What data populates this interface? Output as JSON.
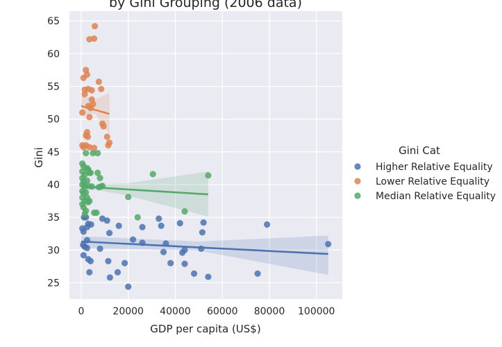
{
  "chart_data": {
    "type": "scatter",
    "title": "by Gini Grouping (2006 data)",
    "xlabel": "GDP per capita (US$)",
    "ylabel": "Gini",
    "xlim": [
      -5000,
      111000
    ],
    "ylim": [
      22.5,
      66.5
    ],
    "xticks": [
      0,
      20000,
      40000,
      60000,
      80000,
      100000
    ],
    "yticks": [
      25,
      30,
      35,
      40,
      45,
      50,
      55,
      60,
      65
    ],
    "xtick_labels": [
      "0",
      "20000",
      "40000",
      "60000",
      "80000",
      "100000"
    ],
    "ytick_labels": [
      "25",
      "30",
      "35",
      "40",
      "45",
      "50",
      "55",
      "60",
      "65"
    ],
    "grid": true,
    "legend": {
      "title": "Gini Cat",
      "placement": "right"
    },
    "series": [
      {
        "name": "Higher Relative Equality",
        "color": "#4c72b0",
        "points": [
          [
            500,
            33.3
          ],
          [
            1000,
            32.8
          ],
          [
            800,
            30.8
          ],
          [
            1200,
            35
          ],
          [
            2000,
            35
          ],
          [
            2500,
            33.5
          ],
          [
            3000,
            34
          ],
          [
            1500,
            30.5
          ],
          [
            2500,
            30.3
          ],
          [
            1000,
            29.2
          ],
          [
            2500,
            31.5
          ],
          [
            3000,
            28.6
          ],
          [
            4000,
            28.3
          ],
          [
            3500,
            26.6
          ],
          [
            4200,
            33.9
          ],
          [
            8000,
            30.2
          ],
          [
            9000,
            34.8
          ],
          [
            11000,
            34.5
          ],
          [
            12000,
            32.6
          ],
          [
            11500,
            28.3
          ],
          [
            12200,
            25.8
          ],
          [
            16000,
            33.7
          ],
          [
            15500,
            26.6
          ],
          [
            18500,
            28
          ],
          [
            20000,
            24.4
          ],
          [
            22000,
            31.6
          ],
          [
            26000,
            33.5
          ],
          [
            26000,
            31.1
          ],
          [
            33000,
            34.8
          ],
          [
            34000,
            33.7
          ],
          [
            35000,
            29.7
          ],
          [
            36000,
            31
          ],
          [
            38000,
            28
          ],
          [
            42000,
            34.1
          ],
          [
            43000,
            29.6
          ],
          [
            44000,
            30
          ],
          [
            44000,
            27.9
          ],
          [
            48000,
            26.4
          ],
          [
            51000,
            30.2
          ],
          [
            51500,
            32.7
          ],
          [
            52000,
            34.2
          ],
          [
            54000,
            25.9
          ],
          [
            75000,
            26.4
          ],
          [
            79000,
            33.9
          ],
          [
            105000,
            30.9
          ]
        ],
        "trend": {
          "x": [
            0,
            105000
          ],
          "y": [
            31.3,
            29.4
          ]
        },
        "band": {
          "x": [
            0,
            50000,
            105000
          ],
          "lower": [
            30.3,
            29.9,
            26.2
          ],
          "upper": [
            32.1,
            31.3,
            32.2
          ]
        }
      },
      {
        "name": "Lower Relative Equality",
        "color": "#dd8452",
        "points": [
          [
            500,
            51
          ],
          [
            1000,
            56.3
          ],
          [
            1500,
            54.5
          ],
          [
            1500,
            53.8
          ],
          [
            2000,
            57.5
          ],
          [
            2500,
            56.8
          ],
          [
            3500,
            62.2
          ],
          [
            5500,
            62.3
          ],
          [
            5800,
            64.2
          ],
          [
            3000,
            54.6
          ],
          [
            4500,
            54.4
          ],
          [
            4500,
            53
          ],
          [
            5000,
            52.3
          ],
          [
            4000,
            51.7
          ],
          [
            3000,
            52
          ],
          [
            3500,
            50.3
          ],
          [
            7500,
            55.7
          ],
          [
            8500,
            54.6
          ],
          [
            9000,
            49.3
          ],
          [
            9500,
            48.9
          ],
          [
            11000,
            47.3
          ],
          [
            11500,
            46
          ],
          [
            12000,
            46.4
          ],
          [
            2000,
            47.5
          ],
          [
            2500,
            48
          ],
          [
            2800,
            47.3
          ],
          [
            500,
            46
          ],
          [
            1000,
            45.7
          ],
          [
            2000,
            46
          ],
          [
            3500,
            45.7
          ],
          [
            5500,
            45.6
          ]
        ],
        "trend": {
          "x": [
            0,
            12000
          ],
          "y": [
            52,
            50.8
          ]
        },
        "band": {
          "x": [
            0,
            6000,
            12000
          ],
          "lower": [
            50.5,
            50.8,
            47.6
          ],
          "upper": [
            53.6,
            53.0,
            54.0
          ]
        }
      },
      {
        "name": "Median Relative Equality",
        "color": "#55a868",
        "points": [
          [
            500,
            43.2
          ],
          [
            1000,
            42.8
          ],
          [
            500,
            42
          ],
          [
            1500,
            41.5
          ],
          [
            500,
            41
          ],
          [
            1000,
            40.5
          ],
          [
            500,
            40
          ],
          [
            1500,
            39.7
          ],
          [
            500,
            39
          ],
          [
            1000,
            38.7
          ],
          [
            500,
            38
          ],
          [
            1500,
            37.5
          ],
          [
            500,
            37
          ],
          [
            1000,
            36.5
          ],
          [
            2000,
            36
          ],
          [
            1500,
            35.5
          ],
          [
            2000,
            44.8
          ],
          [
            2500,
            42.5
          ],
          [
            3000,
            42.3
          ],
          [
            3500,
            41.8
          ],
          [
            2500,
            40.6
          ],
          [
            3000,
            39.8
          ],
          [
            2000,
            38.8
          ],
          [
            2500,
            38
          ],
          [
            3000,
            37.3
          ],
          [
            3500,
            37.5
          ],
          [
            4000,
            41.8
          ],
          [
            4500,
            39.7
          ],
          [
            5000,
            44.8
          ],
          [
            5500,
            35.7
          ],
          [
            6500,
            35.7
          ],
          [
            7000,
            41.8
          ],
          [
            7500,
            39.6
          ],
          [
            8000,
            41
          ],
          [
            8500,
            39.7
          ],
          [
            9000,
            39.8
          ],
          [
            7000,
            44.8
          ],
          [
            20000,
            38.1
          ],
          [
            24000,
            35
          ],
          [
            30500,
            41.6
          ],
          [
            44000,
            35.9
          ],
          [
            54000,
            41.4
          ]
        ],
        "trend": {
          "x": [
            0,
            54000
          ],
          "y": [
            39.7,
            38.5
          ]
        },
        "band": {
          "x": [
            0,
            6000,
            20000,
            54000
          ],
          "lower": [
            39.1,
            39.2,
            38.3,
            35.1
          ],
          "upper": [
            40.4,
            40.0,
            40.2,
            42.0
          ]
        }
      }
    ]
  }
}
